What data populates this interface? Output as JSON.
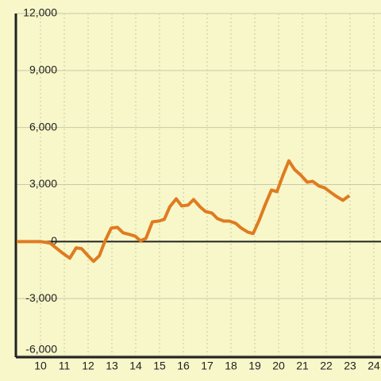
{
  "chart_data": {
    "type": "line",
    "x": [
      9,
      10,
      10.4,
      10.9,
      11.23,
      11.5,
      11.73,
      12.03,
      12.23,
      12.47,
      12.7,
      12.97,
      13.23,
      13.47,
      13.73,
      13.97,
      14.2,
      14.43,
      14.7,
      14.97,
      15.2,
      15.43,
      15.7,
      15.93,
      16.2,
      16.43,
      16.7,
      16.93,
      17.2,
      17.43,
      17.7,
      17.93,
      18.2,
      18.43,
      18.7,
      18.93,
      19.2,
      19.43,
      19.7,
      19.93,
      20.2,
      20.43,
      20.67,
      20.93,
      21.2,
      21.43,
      21.7,
      21.93,
      22.2,
      22.43,
      22.7,
      22.97
    ],
    "series": [
      {
        "color": "#e07b20",
        "values": [
          0,
          0,
          -80,
          -580,
          -875,
          -330,
          -375,
          -790,
          -1040,
          -750,
          0,
          710,
          750,
          460,
          375,
          290,
          40,
          170,
          1040,
          1080,
          1170,
          1830,
          2250,
          1875,
          1920,
          2210,
          1830,
          1580,
          1500,
          1210,
          1080,
          1080,
          960,
          710,
          500,
          420,
          1170,
          1920,
          2710,
          2625,
          3540,
          4250,
          3790,
          3500,
          3125,
          3170,
          2920,
          2830,
          2580,
          2375,
          2170,
          2420
        ]
      }
    ],
    "xlim": [
      9,
      24.3
    ],
    "xticks": [
      10,
      11,
      12,
      13,
      14,
      15,
      16,
      17,
      18,
      19,
      20,
      21,
      22,
      23,
      24
    ],
    "ylim": [
      -6000,
      12000
    ],
    "yticks": [
      {
        "value": -6000,
        "label": "-6,000"
      },
      {
        "value": -3000,
        "label": "-3,000"
      },
      0,
      {
        "value": 3000,
        "label": "3,000"
      },
      {
        "value": 6000,
        "label": "6,000"
      },
      {
        "value": 9000,
        "label": "9,000"
      },
      {
        "value": 12000,
        "label": "12,000"
      }
    ],
    "grid": true
  }
}
